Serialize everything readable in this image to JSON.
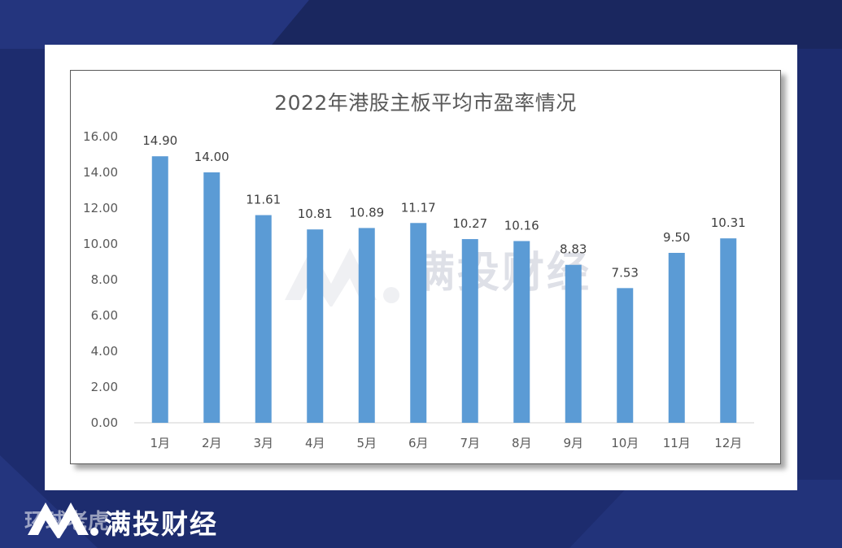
{
  "chart_data": {
    "type": "bar",
    "title": "2022年港股主板平均市盈率情况",
    "categories": [
      "1月",
      "2月",
      "3月",
      "4月",
      "5月",
      "6月",
      "7月",
      "8月",
      "9月",
      "10月",
      "11月",
      "12月"
    ],
    "values": [
      14.9,
      14.0,
      11.61,
      10.81,
      10.89,
      11.17,
      10.27,
      10.16,
      8.83,
      7.53,
      9.5,
      10.31
    ],
    "value_labels": [
      "14.90",
      "14.00",
      "11.61",
      "10.81",
      "10.89",
      "11.17",
      "10.27",
      "10.16",
      "8.83",
      "7.53",
      "9.50",
      "10.31"
    ],
    "y_ticks": [
      "0.00",
      "2.00",
      "4.00",
      "6.00",
      "8.00",
      "10.00",
      "12.00",
      "14.00",
      "16.00"
    ],
    "ylim": [
      0,
      16
    ],
    "xlabel": "",
    "ylabel": "",
    "grid": false,
    "bar_color": "#5b9bd5"
  },
  "watermark": {
    "text": "满投财经"
  },
  "brand": {
    "text": "满投财经",
    "underlay": "环球老虎"
  },
  "colors": {
    "background": "#1d2c6e",
    "accent": "#2a3c8a"
  }
}
